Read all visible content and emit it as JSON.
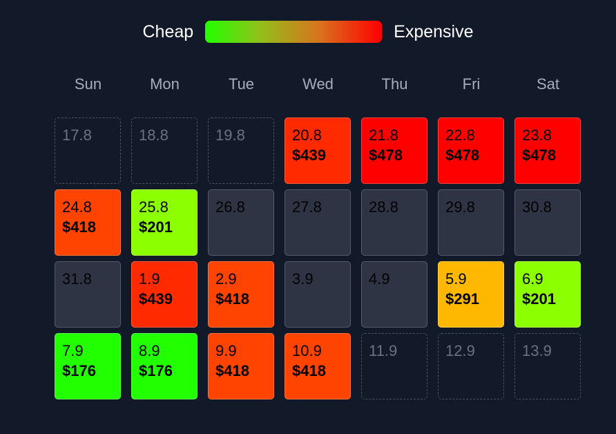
{
  "legend": {
    "low_label": "Cheap",
    "high_label": "Expensive",
    "gradient_start": "#22ff00",
    "gradient_end": "#ff0000"
  },
  "weekdays": [
    "Sun",
    "Mon",
    "Tue",
    "Wed",
    "Thu",
    "Fri",
    "Sat"
  ],
  "weeks": [
    [
      {
        "date": "17.8",
        "state": "empty"
      },
      {
        "date": "18.8",
        "state": "empty"
      },
      {
        "date": "19.8",
        "state": "empty"
      },
      {
        "date": "20.8",
        "price": "$439",
        "state": "priced",
        "color": "#ff2a00"
      },
      {
        "date": "21.8",
        "price": "$478",
        "state": "priced",
        "color": "#ff0000"
      },
      {
        "date": "22.8",
        "price": "$478",
        "state": "priced",
        "color": "#ff0000"
      },
      {
        "date": "23.8",
        "price": "$478",
        "state": "priced",
        "color": "#ff0000"
      }
    ],
    [
      {
        "date": "24.8",
        "price": "$418",
        "state": "priced",
        "color": "#ff4300"
      },
      {
        "date": "25.8",
        "price": "$201",
        "state": "priced",
        "color": "#8cff00"
      },
      {
        "date": "26.8",
        "state": "nodata"
      },
      {
        "date": "27.8",
        "state": "nodata"
      },
      {
        "date": "28.8",
        "state": "nodata"
      },
      {
        "date": "29.8",
        "state": "nodata"
      },
      {
        "date": "30.8",
        "state": "nodata"
      }
    ],
    [
      {
        "date": "31.8",
        "state": "nodata"
      },
      {
        "date": "1.9",
        "price": "$439",
        "state": "priced",
        "color": "#ff2a00"
      },
      {
        "date": "2.9",
        "price": "$418",
        "state": "priced",
        "color": "#ff4300"
      },
      {
        "date": "3.9",
        "state": "nodata"
      },
      {
        "date": "4.9",
        "state": "nodata"
      },
      {
        "date": "5.9",
        "price": "$291",
        "state": "priced",
        "color": "#ffb800"
      },
      {
        "date": "6.9",
        "price": "$201",
        "state": "priced",
        "color": "#8cff00"
      }
    ],
    [
      {
        "date": "7.9",
        "price": "$176",
        "state": "priced",
        "color": "#22ff00"
      },
      {
        "date": "8.9",
        "price": "$176",
        "state": "priced",
        "color": "#22ff00"
      },
      {
        "date": "9.9",
        "price": "$418",
        "state": "priced",
        "color": "#ff4300"
      },
      {
        "date": "10.9",
        "price": "$418",
        "state": "priced",
        "color": "#ff4300"
      },
      {
        "date": "11.9",
        "state": "empty"
      },
      {
        "date": "12.9",
        "state": "empty"
      },
      {
        "date": "13.9",
        "state": "empty"
      }
    ]
  ]
}
